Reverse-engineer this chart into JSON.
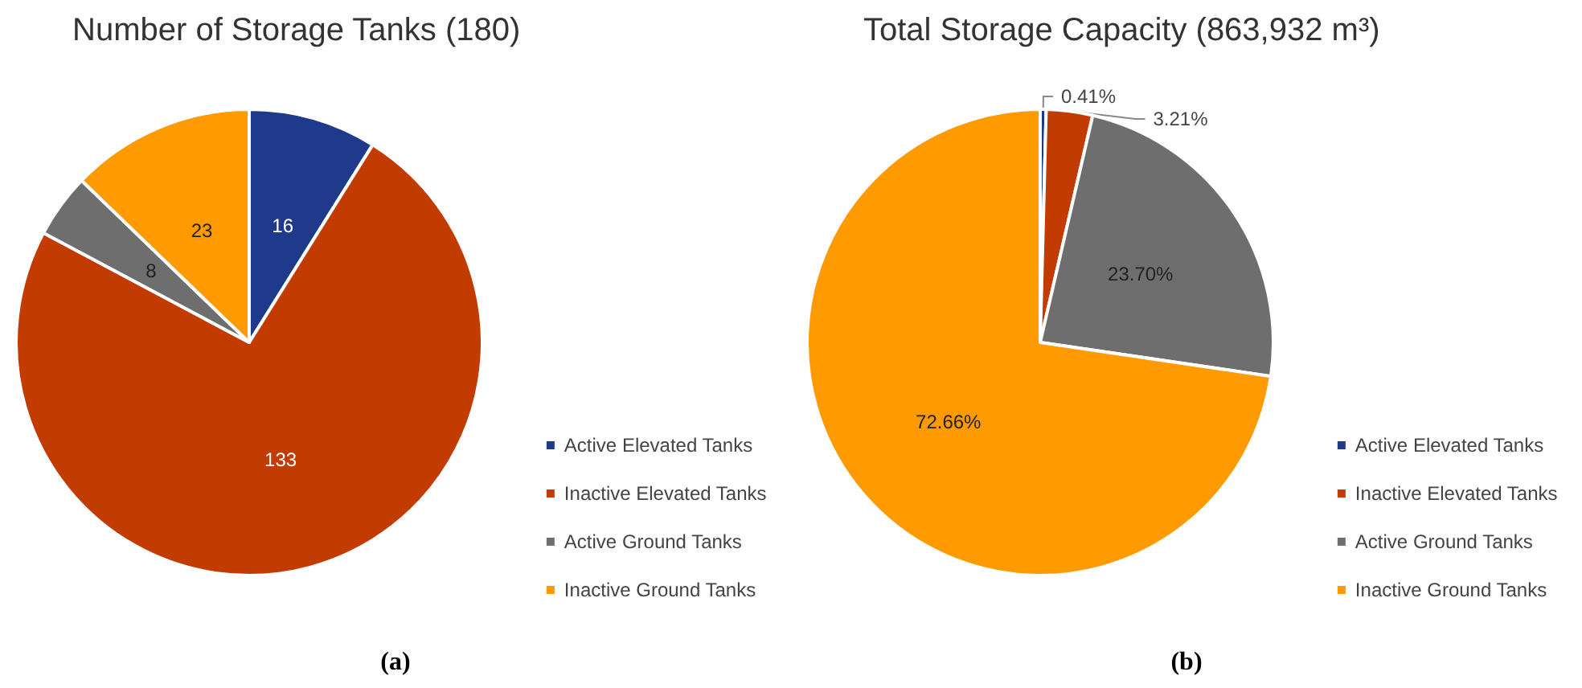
{
  "chart_data": [
    {
      "type": "pie",
      "title": "Number of Storage Tanks (180)",
      "categories": [
        "Active Elevated Tanks",
        "Inactive Elevated Tanks",
        "Active Ground Tanks",
        "Inactive Ground Tanks"
      ],
      "values": [
        16,
        133,
        8,
        23
      ],
      "colors": [
        "#1f3a8a",
        "#c23b00",
        "#6e6e6e",
        "#ff9a00"
      ],
      "data_labels": true,
      "legend": "bottom right",
      "annotations": [
        "(a)"
      ]
    },
    {
      "type": "pie",
      "title": "Total Storage Capacity (863,932 m³)",
      "categories": [
        "Active Elevated Tanks",
        "Inactive Elevated Tanks",
        "Active Ground Tanks",
        "Inactive Ground Tanks"
      ],
      "values": [
        0.41,
        3.21,
        23.7,
        72.66
      ],
      "value_labels": [
        "0.41%",
        "3.21%",
        "23.70%",
        "72.66%"
      ],
      "colors": [
        "#1f3a8a",
        "#c23b00",
        "#6e6e6e",
        "#ff9a00"
      ],
      "legend": "bottom right",
      "annotations": [
        "(b)"
      ]
    }
  ]
}
